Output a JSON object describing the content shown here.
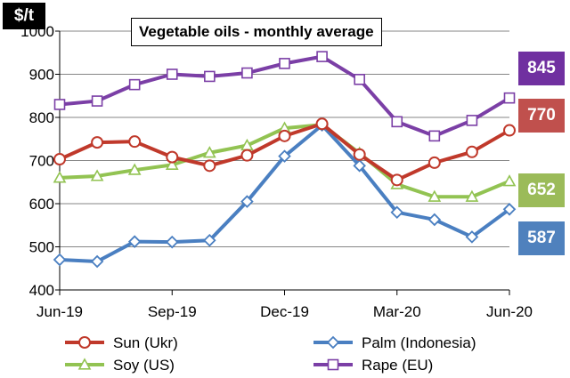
{
  "chart_data": {
    "type": "line",
    "title": "Vegetable oils - monthly average",
    "unit": "$/t",
    "xlabel": "",
    "ylabel": "$/t",
    "ylim": [
      400,
      1000
    ],
    "yticks": [
      400,
      500,
      600,
      700,
      800,
      900,
      1000
    ],
    "x": [
      "Jun-19",
      "Jul-19",
      "Aug-19",
      "Sep-19",
      "Oct-19",
      "Nov-19",
      "Dec-19",
      "Jan-20",
      "Feb-20",
      "Mar-20",
      "Apr-20",
      "May-20",
      "Jun-20"
    ],
    "xtick_labels": [
      "Jun-19",
      "Sep-19",
      "Dec-19",
      "Mar-20",
      "Jun-20"
    ],
    "legend_position": "bottom",
    "grid": "horizontal",
    "series": [
      {
        "name": "Sun (Ukr)",
        "color": "#c0392b",
        "marker": "circle",
        "values": [
          703,
          742,
          744,
          708,
          688,
          712,
          757,
          785,
          714,
          655,
          695,
          720,
          770
        ],
        "last_label": "770"
      },
      {
        "name": "Palm (Indonesia)",
        "color": "#4a7fc1",
        "marker": "diamond",
        "values": [
          470,
          466,
          512,
          511,
          515,
          605,
          710,
          782,
          688,
          580,
          563,
          523,
          587
        ],
        "last_label": "587"
      },
      {
        "name": "Soy (US)",
        "color": "#92c352",
        "marker": "triangle",
        "values": [
          660,
          664,
          678,
          690,
          718,
          735,
          775,
          783,
          717,
          645,
          616,
          616,
          652
        ],
        "last_label": "652"
      },
      {
        "name": "Rape (EU)",
        "color": "#7b3fa6",
        "marker": "square",
        "values": [
          830,
          838,
          876,
          900,
          895,
          903,
          925,
          941,
          888,
          790,
          757,
          793,
          845
        ],
        "last_label": "845"
      }
    ],
    "badge_colors": {
      "Rape (EU)": "#7030a0",
      "Sun (Ukr)": "#c0504d",
      "Soy (US)": "#9bbb59",
      "Palm (Indonesia)": "#4f81bd"
    }
  }
}
